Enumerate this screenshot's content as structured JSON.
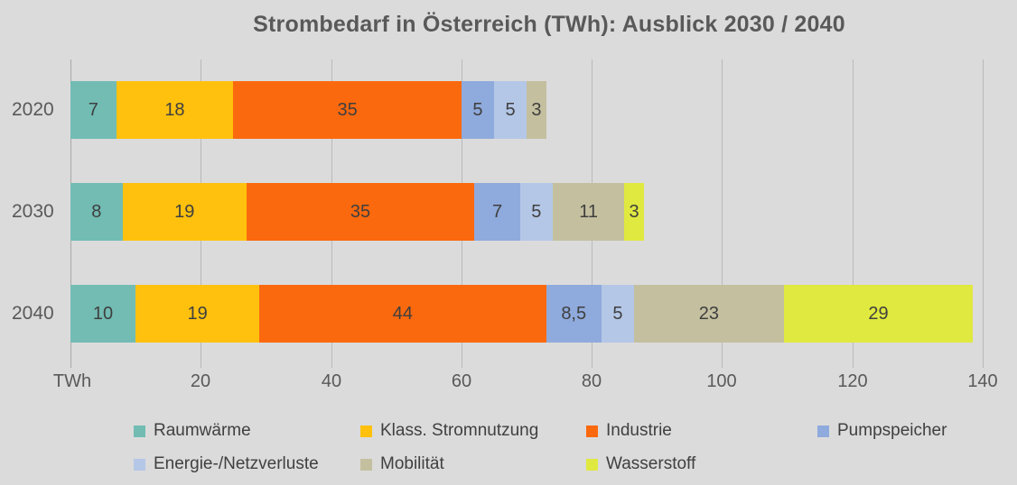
{
  "title": "Strombedarf in Österreich (TWh): Ausblick 2030 / 2040",
  "colors": {
    "background": "#DBDBDB",
    "gridline": "#B9B9B9",
    "title_text": "#595959",
    "axis_text": "#595959",
    "data_label_text": "#3F3F3F"
  },
  "chart_data": {
    "type": "bar",
    "orientation": "horizontal-stacked",
    "title": "Strombedarf in Österreich (TWh): Ausblick 2030 / 2040",
    "xlabel": "TWh",
    "xlim": [
      0,
      140
    ],
    "xticks": [
      20,
      40,
      60,
      80,
      100,
      120,
      140
    ],
    "grid": true,
    "legend_position": "bottom",
    "categories": [
      "2020",
      "2030",
      "2040"
    ],
    "series": [
      {
        "name": "Raumwärme",
        "color": "#72BCB3",
        "values": [
          7,
          8,
          10
        ],
        "labels": [
          "7",
          "8",
          "10"
        ]
      },
      {
        "name": "Klass. Stromnutzung",
        "color": "#FFC10E",
        "values": [
          18,
          19,
          19
        ],
        "labels": [
          "18",
          "19",
          "19"
        ]
      },
      {
        "name": "Industrie",
        "color": "#FB690E",
        "values": [
          35,
          35,
          44
        ],
        "labels": [
          "35",
          "35",
          "44"
        ]
      },
      {
        "name": "Pumpspeicher",
        "color": "#8FAADC",
        "values": [
          5,
          7,
          8.5
        ],
        "labels": [
          "5",
          "7",
          "8,5"
        ]
      },
      {
        "name": "Energie-/Netzverluste",
        "color": "#B4C7E7",
        "values": [
          5,
          5,
          5
        ],
        "labels": [
          "5",
          "5",
          "5"
        ]
      },
      {
        "name": "Mobilität",
        "color": "#C4BF9E",
        "values": [
          3,
          11,
          23
        ],
        "labels": [
          "3",
          "11",
          "23"
        ]
      },
      {
        "name": "Wasserstoff",
        "color": "#E0E93F",
        "values": [
          0,
          3,
          29
        ],
        "labels": [
          "",
          "3",
          "29"
        ]
      }
    ],
    "totals": [
      73,
      88,
      138.5
    ]
  }
}
